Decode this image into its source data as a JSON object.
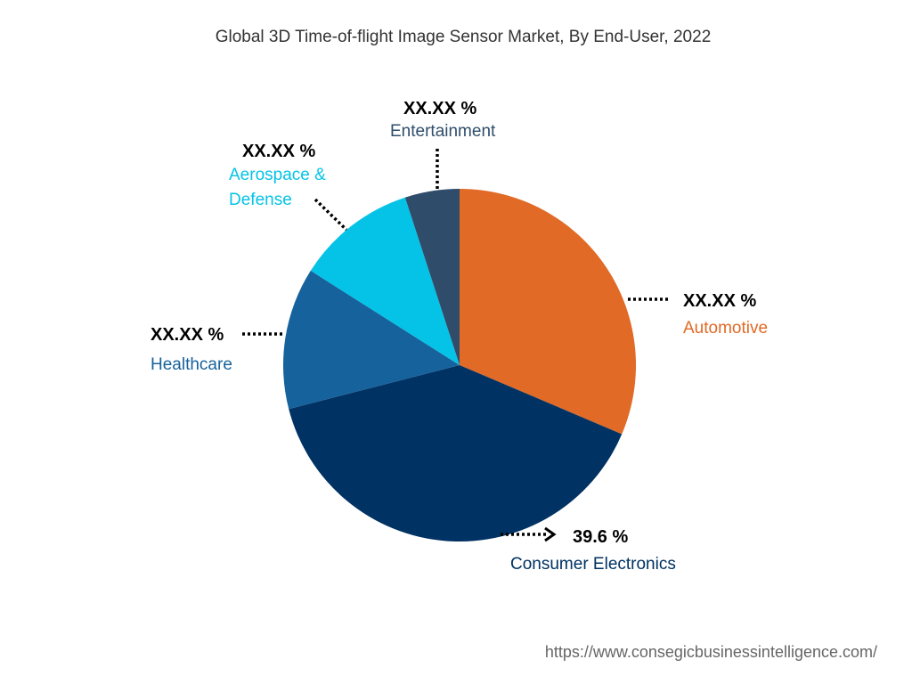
{
  "chart_data": {
    "type": "pie",
    "title": "Global 3D Time-of-flight Image Sensor Market, By End-User, 2022",
    "slices": [
      {
        "label": "Automotive",
        "value_label": "XX.XX %",
        "share": 31.4,
        "color": "#E06A26"
      },
      {
        "label": "Consumer Electronics",
        "value_label": "39.6 %",
        "share": 39.6,
        "color": "#003263"
      },
      {
        "label": "Healthcare",
        "value_label": "XX.XX %",
        "share": 13.0,
        "color": "#16629C"
      },
      {
        "label": "Aerospace & Defense",
        "label_lines": [
          "Aerospace &",
          "Defense"
        ],
        "value_label": "XX.XX %",
        "share": 11.0,
        "color": "#05C3E6"
      },
      {
        "label": "Entertainment",
        "value_label": "XX.XX %",
        "share": 5.0,
        "color": "#2F4D6B"
      }
    ]
  },
  "source_url": "https://www.consegicbusinessintelligence.com/"
}
